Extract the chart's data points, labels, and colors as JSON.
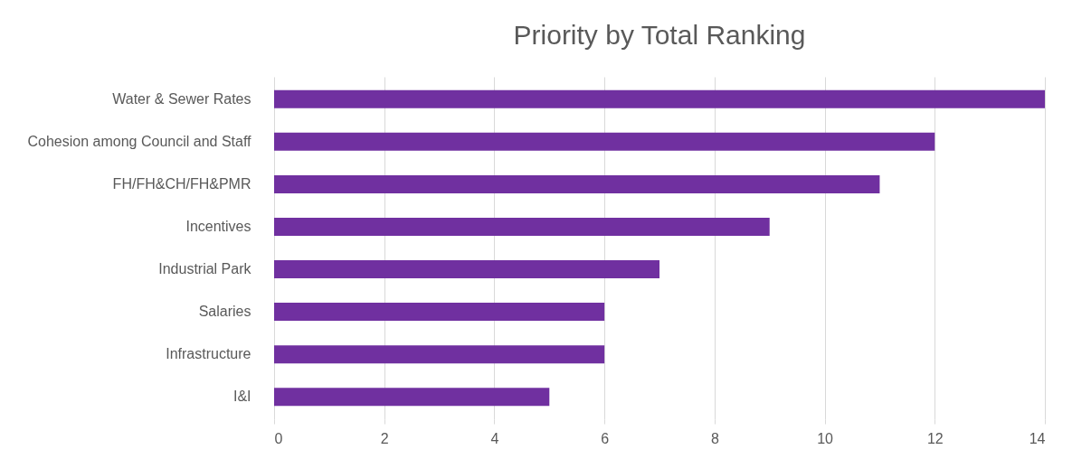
{
  "chart_data": {
    "type": "bar",
    "orientation": "horizontal",
    "title": "Priority by Total Ranking",
    "categories": [
      "Water & Sewer Rates",
      "Cohesion among Council and Staff",
      "FH/FH&CH/FH&PMR",
      "Incentives",
      "Industrial Park",
      "Salaries",
      "Infrastructure",
      "I&I"
    ],
    "values": [
      14,
      12,
      11,
      9,
      7,
      6,
      6,
      5
    ],
    "color": "#7030a0",
    "xlim": [
      0,
      14
    ],
    "xticks": [
      0,
      2,
      4,
      6,
      8,
      10,
      12,
      14
    ],
    "grid": "x"
  }
}
